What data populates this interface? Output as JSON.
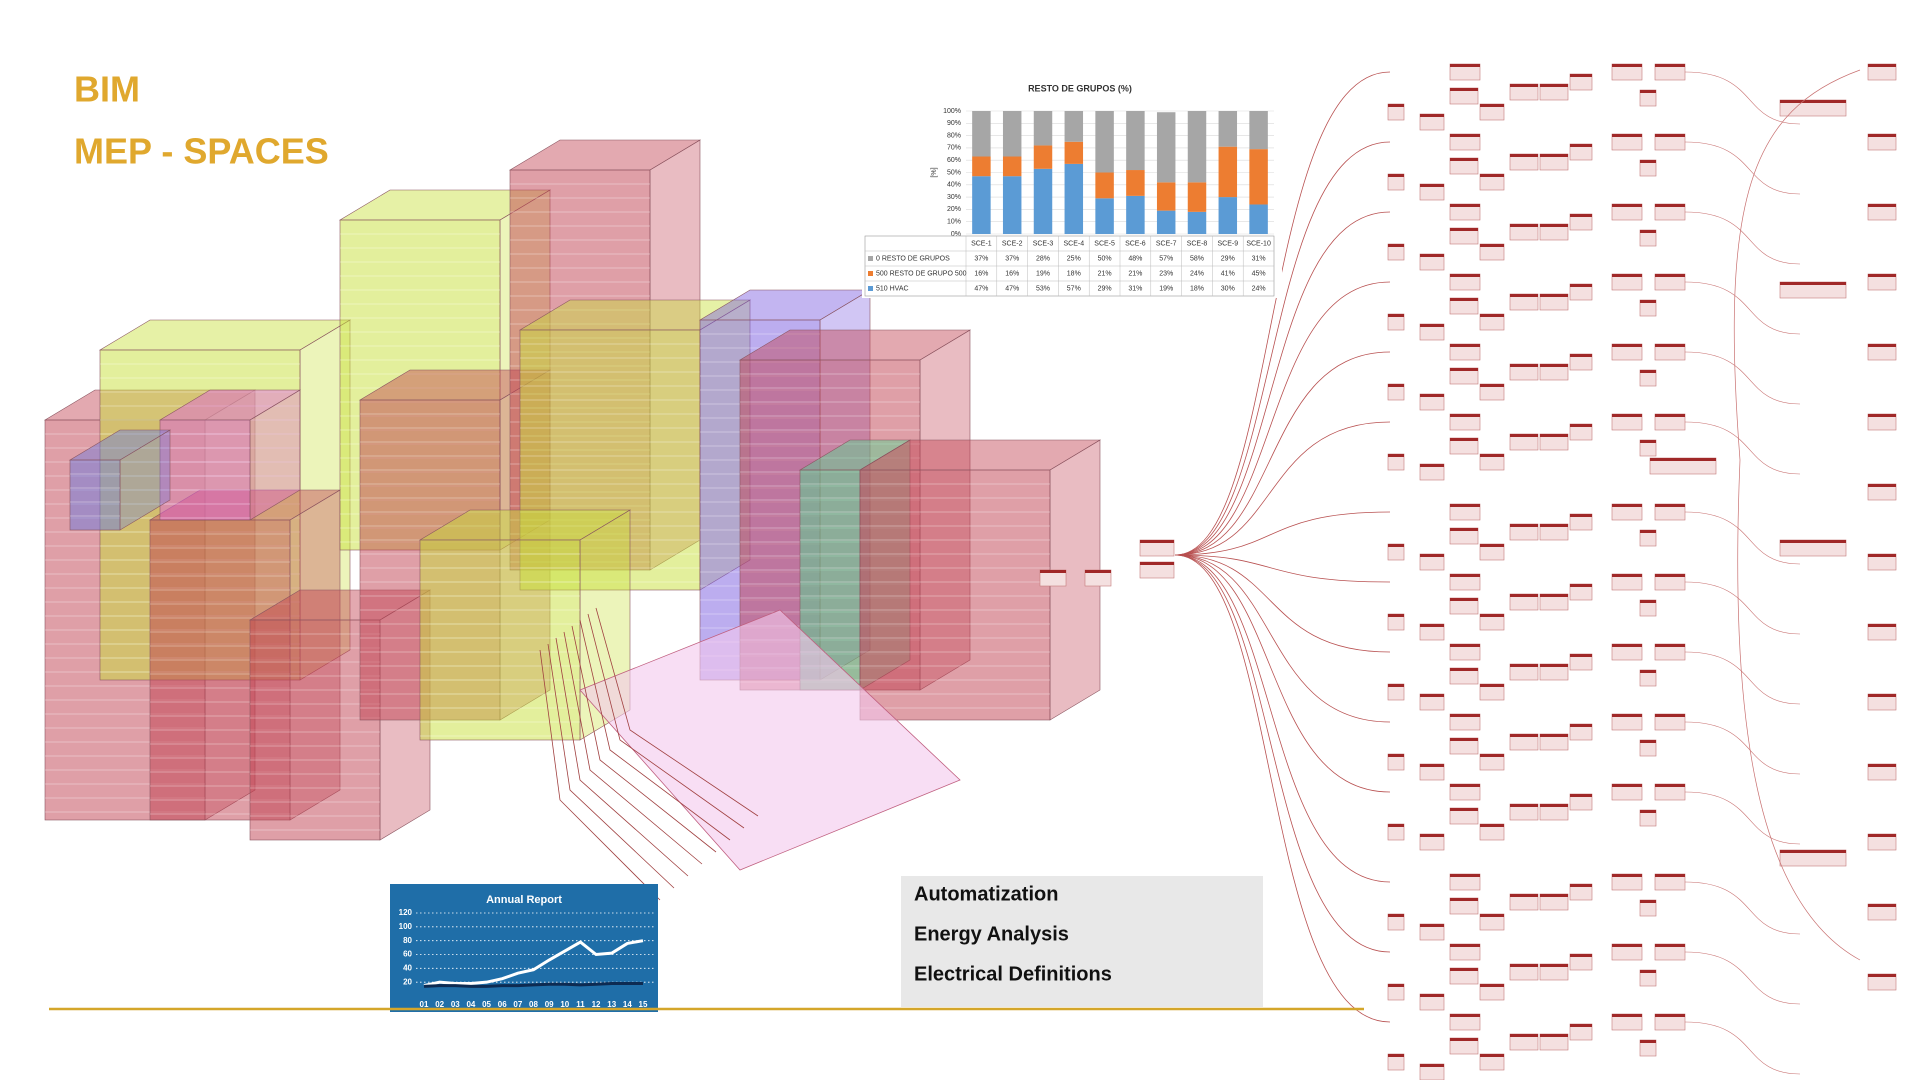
{
  "header": {
    "title": "BIM",
    "subtitle": "MEP - SPACES"
  },
  "chart_data": [
    {
      "type": "bar",
      "stacked": true,
      "title": "RESTO DE GRUPOS (%)",
      "y_label": "[%]",
      "categories": [
        "SCE-1",
        "SCE-2",
        "SCE-3",
        "SCE-4",
        "SCE-5",
        "SCE-6",
        "SCE-7",
        "SCE-8",
        "SCE-9",
        "SCE-10"
      ],
      "series": [
        {
          "name": "0 RESTO DE GRUPOS",
          "color": "#a6a6a6",
          "values": [
            37,
            37,
            28,
            25,
            50,
            48,
            57,
            58,
            29,
            31
          ],
          "value_labels": [
            "37%",
            "37%",
            "28%",
            "25%",
            "50%",
            "48%",
            "57%",
            "58%",
            "29%",
            "31%"
          ]
        },
        {
          "name": "500 RESTO DE GRUPO 500",
          "color": "#ed7d31",
          "values": [
            16,
            16,
            19,
            18,
            21,
            21,
            23,
            24,
            41,
            45
          ],
          "value_labels": [
            "16%",
            "16%",
            "19%",
            "18%",
            "21%",
            "21%",
            "23%",
            "24%",
            "41%",
            "45%"
          ]
        },
        {
          "name": "510 HVAC",
          "color": "#5b9bd5",
          "values": [
            47,
            47,
            53,
            57,
            29,
            31,
            19,
            18,
            30,
            24
          ],
          "value_labels": [
            "47%",
            "47%",
            "53%",
            "57%",
            "29%",
            "31%",
            "19%",
            "18%",
            "30%",
            "24%"
          ]
        }
      ],
      "ylim": [
        0,
        100
      ],
      "yticks": [
        {
          "value": 0,
          "label": "0%"
        },
        {
          "value": 10,
          "label": "10%"
        },
        {
          "value": 20,
          "label": "20%"
        },
        {
          "value": 30,
          "label": "30%"
        },
        {
          "value": 40,
          "label": "40%"
        },
        {
          "value": 50,
          "label": "50%"
        },
        {
          "value": 60,
          "label": "60%"
        },
        {
          "value": 70,
          "label": "70%"
        },
        {
          "value": 80,
          "label": "80%"
        },
        {
          "value": 90,
          "label": "90%"
        },
        {
          "value": 100,
          "label": "100%"
        }
      ],
      "grid": true
    },
    {
      "type": "line",
      "title": "Annual Report",
      "categories": [
        "01",
        "02",
        "03",
        "04",
        "05",
        "06",
        "07",
        "08",
        "09",
        "10",
        "11",
        "12",
        "13",
        "14",
        "15"
      ],
      "series": [
        {
          "color": "#ffffff",
          "values": [
            15,
            20,
            18,
            18,
            20,
            25,
            33,
            38,
            52,
            65,
            78,
            60,
            62,
            76,
            80
          ]
        },
        {
          "color": "#0d2b52",
          "values": [
            14,
            15,
            15,
            14,
            14,
            15,
            15,
            16,
            17,
            17,
            16,
            17,
            18,
            18,
            18
          ]
        }
      ],
      "ylim": [
        0,
        120
      ],
      "yticks": [
        20,
        40,
        60,
        80,
        100,
        120
      ],
      "grid": true
    }
  ],
  "list": {
    "items": [
      "Automatization",
      "Energy Analysis",
      "Electrical Definitions"
    ]
  }
}
